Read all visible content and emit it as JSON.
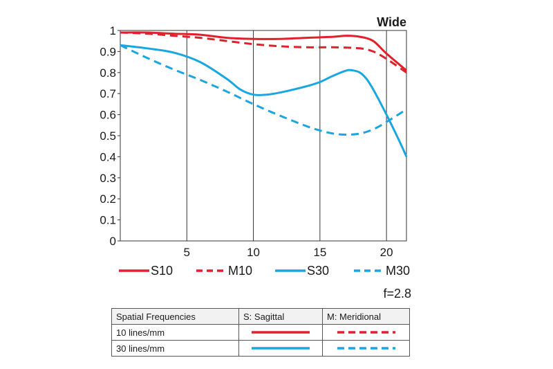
{
  "chart_data": {
    "type": "line",
    "title": "Wide",
    "aperture_label": "f=2.8",
    "xlim": [
      0,
      21.5
    ],
    "ylim": [
      0,
      1
    ],
    "x_ticks": [
      5,
      10,
      15,
      20
    ],
    "y_ticks": [
      0,
      0.1,
      0.2,
      0.3,
      0.4,
      0.5,
      0.6,
      0.7,
      0.8,
      0.9,
      1
    ],
    "y_tick_labels": [
      "0",
      "0.1",
      "0.2",
      "0.3",
      "0.4",
      "0.5",
      "0.6",
      "0.7",
      "0.8",
      "0.9",
      "1"
    ],
    "grid": true,
    "legend_position": "bottom",
    "series": [
      {
        "name": "S10",
        "color": "#e0202a",
        "dash": "solid",
        "x": [
          0,
          2,
          4,
          6,
          8,
          10,
          12,
          14,
          16,
          17,
          18,
          19,
          20,
          21.5
        ],
        "y": [
          0.99,
          0.99,
          0.985,
          0.98,
          0.965,
          0.96,
          0.96,
          0.965,
          0.97,
          0.975,
          0.97,
          0.95,
          0.89,
          0.81
        ]
      },
      {
        "name": "M10",
        "color": "#e0202a",
        "dash": "dashed",
        "x": [
          0,
          2,
          4,
          6,
          8,
          10,
          12,
          14,
          16,
          18,
          19,
          20,
          21.5
        ],
        "y": [
          0.99,
          0.985,
          0.975,
          0.965,
          0.95,
          0.935,
          0.925,
          0.92,
          0.92,
          0.915,
          0.9,
          0.865,
          0.8
        ]
      },
      {
        "name": "S30",
        "color": "#1aa6e0",
        "dash": "solid",
        "x": [
          0,
          2,
          4,
          6,
          8,
          9,
          10,
          11,
          12,
          14,
          15,
          16,
          17,
          17.5,
          18,
          18.5,
          19,
          20,
          21,
          21.5
        ],
        "y": [
          0.93,
          0.915,
          0.895,
          0.85,
          0.77,
          0.72,
          0.695,
          0.695,
          0.705,
          0.735,
          0.755,
          0.785,
          0.81,
          0.81,
          0.8,
          0.77,
          0.72,
          0.6,
          0.47,
          0.4
        ]
      },
      {
        "name": "M30",
        "color": "#1aa6e0",
        "dash": "dashed",
        "x": [
          0,
          2,
          4,
          6,
          8,
          10,
          12,
          14,
          15,
          16,
          17,
          18,
          19,
          20,
          21,
          21.5
        ],
        "y": [
          0.93,
          0.87,
          0.815,
          0.765,
          0.71,
          0.65,
          0.595,
          0.545,
          0.525,
          0.51,
          0.505,
          0.51,
          0.53,
          0.565,
          0.605,
          0.625
        ]
      }
    ]
  },
  "table": {
    "headers": [
      "Spatial Frequencies",
      "S: Sagittal",
      "M: Meridional"
    ],
    "rows": [
      {
        "label": "10 lines/mm",
        "color": "#e0202a"
      },
      {
        "label": "30 lines/mm",
        "color": "#1aa6e0"
      }
    ]
  }
}
